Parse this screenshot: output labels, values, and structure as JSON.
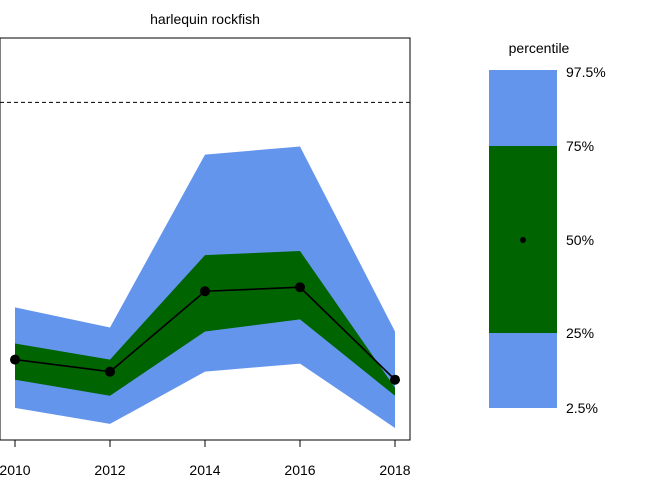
{
  "chart_data": {
    "type": "area",
    "title": "harlequin rockfish",
    "xlabel": "",
    "ylabel": "",
    "x": [
      2010,
      2012,
      2014,
      2016,
      2018
    ],
    "x_ticks": [
      "2010",
      "2012",
      "2014",
      "2016",
      "2018"
    ],
    "xlim": [
      2010,
      2018
    ],
    "ylim": [
      0,
      1
    ],
    "y_axis_labels_shown": false,
    "grid": false,
    "series": [
      {
        "name": "2.5%",
        "values": [
          0.08,
          0.04,
          0.17,
          0.19,
          0.03
        ]
      },
      {
        "name": "25%",
        "values": [
          0.15,
          0.11,
          0.27,
          0.3,
          0.11
        ]
      },
      {
        "name": "50%",
        "values": [
          0.2,
          0.17,
          0.37,
          0.38,
          0.15
        ]
      },
      {
        "name": "75%",
        "values": [
          0.24,
          0.2,
          0.46,
          0.47,
          0.13
        ]
      },
      {
        "name": "97.5%",
        "values": [
          0.33,
          0.28,
          0.71,
          0.73,
          0.27
        ]
      }
    ],
    "reference_line": {
      "value": 0.84,
      "style": "dashed"
    },
    "legend": {
      "title": "percentile",
      "placement": "right",
      "labels": [
        "97.5%",
        "75%",
        "50%",
        "25%",
        "2.5%"
      ]
    },
    "colors": {
      "outer_band": "#6495ed",
      "inner_band": "#006400",
      "median": "#000000"
    }
  }
}
